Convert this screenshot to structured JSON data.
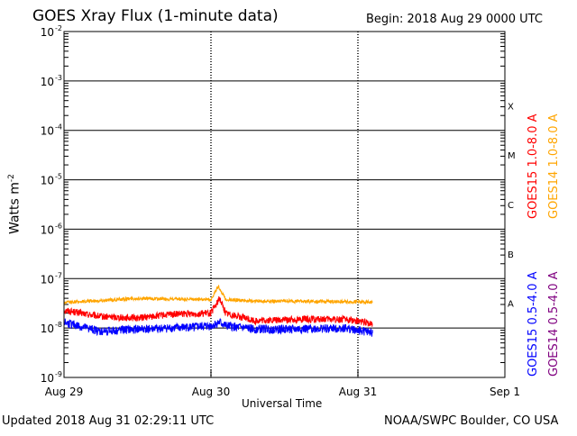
{
  "chart_data": {
    "type": "line",
    "title": "GOES Xray Flux (1-minute data)",
    "begin_label": "Begin:  2018 Aug 29 0000 UTC",
    "xlabel": "Universal Time",
    "ylabel": "Watts m",
    "ylabel_sup": "-2",
    "x_ticks": [
      "Aug 29",
      "Aug 30",
      "Aug 31",
      "Sep 1"
    ],
    "x_range_days": [
      0,
      3
    ],
    "y_scale": "log",
    "ylim": [
      1e-09,
      0.01
    ],
    "y_ticks": [
      {
        "base": "10",
        "exp": "-2"
      },
      {
        "base": "10",
        "exp": "-3"
      },
      {
        "base": "10",
        "exp": "-4"
      },
      {
        "base": "10",
        "exp": "-5"
      },
      {
        "base": "10",
        "exp": "-6"
      },
      {
        "base": "10",
        "exp": "-7"
      },
      {
        "base": "10",
        "exp": "-8"
      },
      {
        "base": "10",
        "exp": "-9"
      }
    ],
    "flare_classes": [
      {
        "label": "X",
        "exponent": -3.5
      },
      {
        "label": "M",
        "exponent": -4.5
      },
      {
        "label": "C",
        "exponent": -5.5
      },
      {
        "label": "B",
        "exponent": -6.5
      },
      {
        "label": "A",
        "exponent": -7.5
      }
    ],
    "series": [
      {
        "name": "GOES15 1.0-8.0 A",
        "color": "#ff0000",
        "x": [
          0,
          0.25,
          0.5,
          0.75,
          1.0,
          1.06,
          1.1,
          1.3,
          1.6,
          1.9,
          2.0,
          2.1
        ],
        "y": [
          2.3e-08,
          1.7e-08,
          1.6e-08,
          1.9e-08,
          2e-08,
          4e-08,
          2e-08,
          1.4e-08,
          1.5e-08,
          1.5e-08,
          1.4e-08,
          1.2e-08
        ]
      },
      {
        "name": "GOES14 1.0-8.0 A",
        "color": "#ffa500",
        "x": [
          0,
          0.25,
          0.5,
          0.75,
          1.0,
          1.05,
          1.1,
          1.3,
          1.6,
          1.9,
          2.0,
          2.1
        ],
        "y": [
          3.3e-08,
          3.6e-08,
          4e-08,
          3.8e-08,
          3.8e-08,
          7e-08,
          3.8e-08,
          3.5e-08,
          3.5e-08,
          3.4e-08,
          3.4e-08,
          3.3e-08
        ]
      },
      {
        "name": "GOES15 0.5-4.0 A",
        "color": "#0000ff",
        "x": [
          0,
          0.25,
          0.5,
          0.75,
          1.0,
          1.06,
          1.1,
          1.3,
          1.6,
          1.9,
          2.0,
          2.1
        ],
        "y": [
          1.3e-08,
          8.5e-09,
          9.5e-09,
          1e-08,
          1.1e-08,
          1.3e-08,
          1.1e-08,
          9.5e-09,
          9.5e-09,
          1e-08,
          9e-09,
          8e-09
        ]
      },
      {
        "name": "GOES14 0.5-4.0 A",
        "color": "#800080",
        "x": [],
        "y": []
      }
    ]
  },
  "footer": {
    "updated": "Updated 2018 Aug 31 02:29:11 UTC",
    "credit": "NOAA/SWPC Boulder, CO USA"
  }
}
